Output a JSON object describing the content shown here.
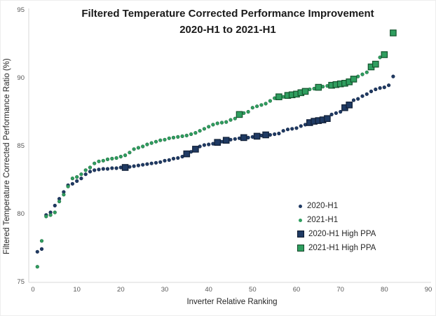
{
  "chart": {
    "title_line1": "Filtered Temperature Corrected Performance Improvement",
    "title_line2": "2020-H1 to 2021-H1",
    "y_axis": {
      "title": "Filtered Temperature Corrected Performance Ratio (%)"
    },
    "x_axis": {
      "title": "Inverter Relative Ranking"
    }
  },
  "chart_data": {
    "type": "scatter",
    "title": "Filtered Temperature Corrected Performance Improvement 2020-H1 to 2021-H1",
    "xlabel": "Inverter Relative Ranking",
    "ylabel": "Filtered Temperature Corrected Performance Ratio (%)",
    "xlim": [
      0,
      90
    ],
    "ylim": [
      75,
      95
    ],
    "x_ticks": [
      0,
      10,
      20,
      30,
      40,
      50,
      60,
      70,
      80,
      90
    ],
    "y_ticks": [
      75,
      80,
      85,
      90,
      95
    ],
    "grid": false,
    "legend_position": "inside-right-bottom",
    "axis_line_color": "#d9d9d9",
    "tick_label_color": "#595959",
    "series": [
      {
        "name": "2020-H1",
        "marker": "dot",
        "color": "#1f3a63",
        "edge": "#16294a",
        "points": [
          [
            1,
            77.2
          ],
          [
            2,
            77.4
          ],
          [
            3,
            79.9
          ],
          [
            4,
            80.1
          ],
          [
            5,
            80.6
          ],
          [
            6,
            81.1
          ],
          [
            7,
            81.6
          ],
          [
            8,
            82.1
          ],
          [
            9,
            82.2
          ],
          [
            10,
            82.4
          ],
          [
            11,
            82.6
          ],
          [
            12,
            82.9
          ],
          [
            13,
            83.1
          ],
          [
            14,
            83.2
          ],
          [
            15,
            83.25
          ],
          [
            16,
            83.3
          ],
          [
            17,
            83.3
          ],
          [
            18,
            83.35
          ],
          [
            19,
            83.35
          ],
          [
            20,
            83.4
          ],
          [
            22,
            83.45
          ],
          [
            23,
            83.5
          ],
          [
            24,
            83.55
          ],
          [
            25,
            83.6
          ],
          [
            26,
            83.65
          ],
          [
            27,
            83.7
          ],
          [
            28,
            83.75
          ],
          [
            29,
            83.8
          ],
          [
            30,
            83.9
          ],
          [
            31,
            83.95
          ],
          [
            32,
            84.05
          ],
          [
            33,
            84.1
          ],
          [
            34,
            84.2
          ],
          [
            36,
            84.55
          ],
          [
            38,
            84.95
          ],
          [
            39,
            85.05
          ],
          [
            40,
            85.1
          ],
          [
            41,
            85.15
          ],
          [
            43,
            85.3
          ],
          [
            45,
            85.45
          ],
          [
            46,
            85.5
          ],
          [
            47,
            85.55
          ],
          [
            49,
            85.6
          ],
          [
            50,
            85.65
          ],
          [
            52,
            85.75
          ],
          [
            54,
            85.8
          ],
          [
            55,
            85.85
          ],
          [
            56,
            85.9
          ],
          [
            57,
            86.1
          ],
          [
            58,
            86.2
          ],
          [
            59,
            86.25
          ],
          [
            60,
            86.3
          ],
          [
            61,
            86.45
          ],
          [
            62,
            86.55
          ],
          [
            68,
            87.3
          ],
          [
            69,
            87.4
          ],
          [
            70,
            87.5
          ],
          [
            73,
            88.35
          ],
          [
            74,
            88.45
          ],
          [
            75,
            88.65
          ],
          [
            76,
            88.8
          ],
          [
            77,
            89.0
          ],
          [
            78,
            89.15
          ],
          [
            79,
            89.25
          ],
          [
            80,
            89.3
          ],
          [
            81,
            89.45
          ],
          [
            82,
            90.1
          ]
        ]
      },
      {
        "name": "2021-H1",
        "marker": "dot",
        "color": "#2f9e5f",
        "edge": "#1e6b40",
        "points": [
          [
            1,
            76.1
          ],
          [
            2,
            78.0
          ],
          [
            3,
            79.8
          ],
          [
            4,
            79.9
          ],
          [
            5,
            80.1
          ],
          [
            6,
            80.9
          ],
          [
            7,
            81.4
          ],
          [
            8,
            82.0
          ],
          [
            9,
            82.6
          ],
          [
            10,
            82.7
          ],
          [
            11,
            82.9
          ],
          [
            12,
            83.2
          ],
          [
            13,
            83.4
          ],
          [
            14,
            83.7
          ],
          [
            15,
            83.85
          ],
          [
            16,
            83.9
          ],
          [
            17,
            84.0
          ],
          [
            18,
            84.05
          ],
          [
            19,
            84.1
          ],
          [
            20,
            84.2
          ],
          [
            21,
            84.3
          ],
          [
            22,
            84.5
          ],
          [
            23,
            84.75
          ],
          [
            24,
            84.85
          ],
          [
            25,
            84.95
          ],
          [
            26,
            85.1
          ],
          [
            27,
            85.2
          ],
          [
            28,
            85.3
          ],
          [
            29,
            85.4
          ],
          [
            30,
            85.45
          ],
          [
            31,
            85.55
          ],
          [
            32,
            85.6
          ],
          [
            33,
            85.65
          ],
          [
            34,
            85.7
          ],
          [
            35,
            85.75
          ],
          [
            36,
            85.85
          ],
          [
            37,
            85.95
          ],
          [
            38,
            86.1
          ],
          [
            39,
            86.25
          ],
          [
            40,
            86.4
          ],
          [
            41,
            86.55
          ],
          [
            42,
            86.65
          ],
          [
            43,
            86.7
          ],
          [
            44,
            86.75
          ],
          [
            45,
            86.9
          ],
          [
            46,
            87.0
          ],
          [
            48,
            87.4
          ],
          [
            49,
            87.5
          ],
          [
            50,
            87.8
          ],
          [
            51,
            87.9
          ],
          [
            52,
            88.0
          ],
          [
            53,
            88.1
          ],
          [
            54,
            88.3
          ],
          [
            55,
            88.5
          ],
          [
            57,
            88.6
          ],
          [
            63,
            89.15
          ],
          [
            64,
            89.2
          ],
          [
            66,
            89.35
          ],
          [
            67,
            89.4
          ],
          [
            74,
            90.1
          ],
          [
            75,
            90.25
          ],
          [
            76,
            90.4
          ],
          [
            79,
            91.5
          ]
        ]
      },
      {
        "name": "2020-H1 High PPA",
        "marker": "square",
        "color": "#1f3a63",
        "edge": "#101f36",
        "points": [
          [
            21,
            83.4
          ],
          [
            35,
            84.4
          ],
          [
            37,
            84.75
          ],
          [
            42,
            85.25
          ],
          [
            44,
            85.4
          ],
          [
            48,
            85.6
          ],
          [
            51,
            85.7
          ],
          [
            53,
            85.8
          ],
          [
            63,
            86.7
          ],
          [
            64,
            86.8
          ],
          [
            65,
            86.85
          ],
          [
            66,
            86.9
          ],
          [
            67,
            87.0
          ],
          [
            71,
            87.8
          ],
          [
            72,
            88.0
          ]
        ]
      },
      {
        "name": "2021-H1 High PPA",
        "marker": "square",
        "color": "#2f9e5f",
        "edge": "#14532d",
        "points": [
          [
            47,
            87.3
          ],
          [
            56,
            88.6
          ],
          [
            58,
            88.7
          ],
          [
            59,
            88.75
          ],
          [
            60,
            88.8
          ],
          [
            61,
            88.9
          ],
          [
            62,
            89.0
          ],
          [
            65,
            89.3
          ],
          [
            68,
            89.45
          ],
          [
            69,
            89.5
          ],
          [
            70,
            89.55
          ],
          [
            71,
            89.6
          ],
          [
            72,
            89.7
          ],
          [
            73,
            89.9
          ],
          [
            77,
            90.8
          ],
          [
            78,
            91.0
          ],
          [
            80,
            91.7
          ],
          [
            82,
            93.3
          ]
        ]
      }
    ]
  }
}
